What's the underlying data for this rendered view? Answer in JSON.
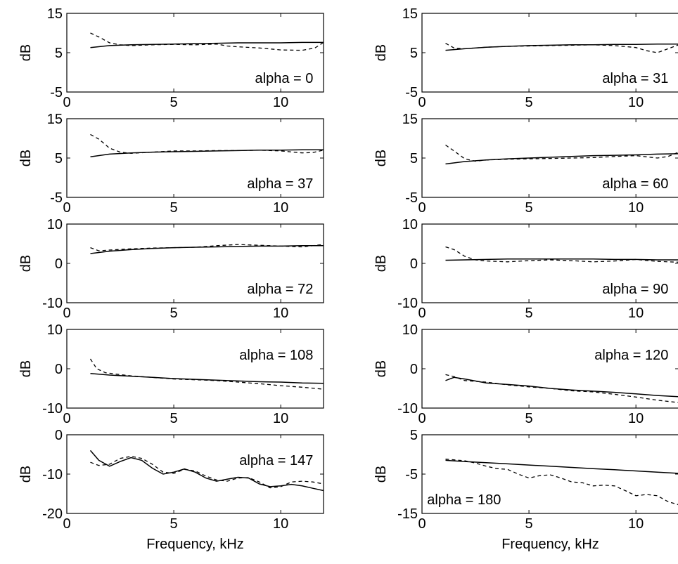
{
  "chart_data": [
    {
      "type": "line",
      "annotation": "alpha = 0",
      "ylabel": "dB",
      "xlabel": "",
      "xlim": [
        0,
        12
      ],
      "ylim": [
        -5,
        15
      ],
      "xticks": [
        0,
        5,
        10
      ],
      "yticks": [
        -5,
        5,
        15
      ],
      "series": [
        {
          "style": "solid",
          "x": [
            1.1,
            2,
            3,
            4,
            5,
            6,
            7,
            8,
            9,
            10,
            11,
            12
          ],
          "y": [
            6.3,
            6.8,
            7.0,
            7.1,
            7.2,
            7.3,
            7.4,
            7.5,
            7.5,
            7.5,
            7.6,
            7.6
          ]
        },
        {
          "style": "dashed",
          "x": [
            1.1,
            1.5,
            2,
            2.5,
            3,
            4,
            5,
            6,
            7,
            7.5,
            8,
            9,
            10,
            11,
            11.6,
            12
          ],
          "y": [
            10.0,
            9.0,
            7.5,
            7.0,
            6.8,
            7.0,
            7.1,
            7.0,
            7.2,
            6.7,
            6.5,
            6.2,
            5.7,
            5.6,
            6.2,
            7.6
          ]
        }
      ]
    },
    {
      "type": "line",
      "annotation": "alpha = 31",
      "ylabel": "dB",
      "xlabel": "",
      "xlim": [
        0,
        12
      ],
      "ylim": [
        -5,
        15
      ],
      "xticks": [
        0,
        5,
        10
      ],
      "yticks": [
        -5,
        5,
        15
      ],
      "series": [
        {
          "style": "solid",
          "x": [
            1.1,
            2,
            3,
            4,
            5,
            6,
            7,
            8,
            9,
            10,
            11,
            12
          ],
          "y": [
            5.6,
            6.0,
            6.4,
            6.6,
            6.8,
            6.9,
            7.0,
            7.0,
            7.1,
            7.1,
            7.2,
            7.2
          ]
        },
        {
          "style": "dashed",
          "x": [
            1.1,
            1.5,
            2,
            2.5,
            3,
            4,
            5,
            6,
            7,
            8,
            9,
            10,
            10.5,
            11,
            11.5,
            12
          ],
          "y": [
            7.4,
            6.2,
            6.0,
            6.2,
            6.4,
            6.6,
            6.7,
            6.8,
            6.9,
            7.0,
            6.8,
            6.3,
            5.5,
            5.0,
            6.0,
            7.0
          ]
        }
      ]
    },
    {
      "type": "line",
      "annotation": "alpha = 37",
      "ylabel": "dB",
      "xlabel": "",
      "xlim": [
        0,
        12
      ],
      "ylim": [
        -5,
        15
      ],
      "xticks": [
        0,
        5,
        10
      ],
      "yticks": [
        -5,
        5,
        15
      ],
      "series": [
        {
          "style": "solid",
          "x": [
            1.1,
            2,
            3,
            4,
            5,
            6,
            7,
            8,
            9,
            10,
            11,
            12
          ],
          "y": [
            5.3,
            6.0,
            6.3,
            6.5,
            6.6,
            6.7,
            6.8,
            6.9,
            7.0,
            7.0,
            7.1,
            7.1
          ]
        },
        {
          "style": "dashed",
          "x": [
            1.1,
            1.5,
            2,
            2.5,
            3,
            4,
            5,
            6,
            7,
            8,
            9,
            10,
            11,
            11.5,
            12
          ],
          "y": [
            11.0,
            9.8,
            7.5,
            6.5,
            6.2,
            6.5,
            6.8,
            6.8,
            6.9,
            6.9,
            7.0,
            6.8,
            6.3,
            6.4,
            7.0
          ]
        }
      ]
    },
    {
      "type": "line",
      "annotation": "alpha = 60",
      "ylabel": "dB",
      "xlabel": "",
      "xlim": [
        0,
        12
      ],
      "ylim": [
        -5,
        15
      ],
      "xticks": [
        0,
        5,
        10
      ],
      "yticks": [
        -5,
        5,
        15
      ],
      "series": [
        {
          "style": "solid",
          "x": [
            1.1,
            2,
            3,
            4,
            5,
            6,
            7,
            8,
            9,
            10,
            11,
            12
          ],
          "y": [
            3.5,
            4.1,
            4.5,
            4.8,
            5.0,
            5.2,
            5.4,
            5.6,
            5.7,
            5.8,
            6.0,
            6.1
          ]
        },
        {
          "style": "dashed",
          "x": [
            1.1,
            1.5,
            2,
            2.5,
            3,
            4,
            5,
            6,
            7,
            8,
            9,
            10,
            11,
            11.5,
            12
          ],
          "y": [
            8.3,
            6.8,
            4.8,
            4.2,
            4.5,
            4.7,
            4.8,
            4.9,
            5.0,
            5.1,
            5.4,
            5.6,
            5.0,
            5.4,
            6.5
          ]
        }
      ]
    },
    {
      "type": "line",
      "annotation": "alpha = 72",
      "ylabel": "dB",
      "xlabel": "",
      "xlim": [
        0,
        12
      ],
      "ylim": [
        -10,
        10
      ],
      "xticks": [
        0,
        5,
        10
      ],
      "yticks": [
        -10,
        0,
        10
      ],
      "series": [
        {
          "style": "solid",
          "x": [
            1.1,
            2,
            3,
            4,
            5,
            6,
            7,
            8,
            9,
            10,
            11,
            12
          ],
          "y": [
            2.5,
            3.1,
            3.5,
            3.8,
            4.0,
            4.1,
            4.2,
            4.3,
            4.4,
            4.4,
            4.5,
            4.5
          ]
        },
        {
          "style": "dashed",
          "x": [
            1.1,
            1.5,
            2,
            3,
            4,
            5,
            6,
            7,
            8,
            9,
            10,
            11,
            12
          ],
          "y": [
            4.0,
            3.2,
            3.4,
            3.7,
            3.9,
            4.0,
            4.1,
            4.5,
            4.8,
            4.6,
            4.4,
            4.2,
            4.8
          ]
        }
      ]
    },
    {
      "type": "line",
      "annotation": "alpha = 90",
      "ylabel": "dB",
      "xlabel": "",
      "xlim": [
        0,
        12
      ],
      "ylim": [
        -10,
        10
      ],
      "xticks": [
        0,
        5,
        10
      ],
      "yticks": [
        -10,
        0,
        10
      ],
      "series": [
        {
          "style": "solid",
          "x": [
            1.1,
            2,
            3,
            4,
            5,
            6,
            7,
            8,
            9,
            10,
            11,
            12
          ],
          "y": [
            0.8,
            0.9,
            1.0,
            1.1,
            1.1,
            1.1,
            1.1,
            1.1,
            1.0,
            1.0,
            0.9,
            0.9
          ]
        },
        {
          "style": "dashed",
          "x": [
            1.1,
            1.5,
            2,
            2.5,
            3,
            4,
            5,
            6,
            7,
            8,
            9,
            10,
            11,
            12
          ],
          "y": [
            4.2,
            3.5,
            1.8,
            0.9,
            0.6,
            0.4,
            0.7,
            0.9,
            0.7,
            0.4,
            0.6,
            1.0,
            0.5,
            0.3
          ]
        }
      ]
    },
    {
      "type": "line",
      "annotation": "alpha = 108",
      "ylabel": "dB",
      "xlabel": "",
      "xlim": [
        0,
        12
      ],
      "ylim": [
        -10,
        10
      ],
      "xticks": [
        0,
        5,
        10
      ],
      "yticks": [
        -10,
        0,
        10
      ],
      "series": [
        {
          "style": "solid",
          "x": [
            1.1,
            2,
            3,
            4,
            5,
            6,
            7,
            8,
            9,
            10,
            11,
            12
          ],
          "y": [
            -1.2,
            -1.6,
            -1.9,
            -2.2,
            -2.5,
            -2.7,
            -2.9,
            -3.1,
            -3.3,
            -3.4,
            -3.6,
            -3.7
          ]
        },
        {
          "style": "dashed",
          "x": [
            1.1,
            1.4,
            1.8,
            2.5,
            3,
            4,
            5,
            6,
            7,
            8,
            9,
            10,
            11,
            12
          ],
          "y": [
            2.5,
            0.0,
            -1.0,
            -1.5,
            -1.8,
            -2.2,
            -2.6,
            -2.8,
            -3.0,
            -3.4,
            -3.8,
            -4.3,
            -4.7,
            -5.2
          ]
        }
      ]
    },
    {
      "type": "line",
      "annotation": "alpha = 120",
      "ylabel": "dB",
      "xlabel": "",
      "xlim": [
        0,
        12
      ],
      "ylim": [
        -10,
        10
      ],
      "xticks": [
        0,
        5,
        10
      ],
      "yticks": [
        -10,
        0,
        10
      ],
      "series": [
        {
          "style": "solid",
          "x": [
            1.1,
            1.5,
            2,
            3,
            4,
            5,
            6,
            7,
            8,
            9,
            10,
            11,
            12
          ],
          "y": [
            -3.0,
            -2.2,
            -2.6,
            -3.6,
            -4.0,
            -4.4,
            -5.0,
            -5.4,
            -5.7,
            -6.0,
            -6.4,
            -6.8,
            -7.1
          ]
        },
        {
          "style": "dashed",
          "x": [
            1.1,
            1.5,
            2,
            3,
            4,
            5,
            6,
            7,
            8,
            9,
            10,
            11,
            12
          ],
          "y": [
            -1.5,
            -2.0,
            -3.0,
            -3.4,
            -4.1,
            -4.6,
            -5.0,
            -5.6,
            -5.9,
            -6.5,
            -7.2,
            -8.0,
            -8.6
          ]
        }
      ]
    },
    {
      "type": "line",
      "annotation": "alpha = 147",
      "ylabel": "dB",
      "xlabel": "Frequency, kHz",
      "xlim": [
        0,
        12
      ],
      "ylim": [
        -20,
        0
      ],
      "xticks": [
        0,
        5,
        10
      ],
      "yticks": [
        -20,
        -10,
        0
      ],
      "series": [
        {
          "style": "solid",
          "x": [
            1.1,
            1.5,
            2,
            2.5,
            3,
            3.5,
            4,
            4.5,
            5,
            5.5,
            6,
            6.5,
            7,
            7.5,
            8,
            8.5,
            9,
            9.5,
            10,
            10.5,
            11,
            11.5,
            12
          ],
          "y": [
            -4.0,
            -6.5,
            -8.0,
            -6.8,
            -5.8,
            -6.5,
            -8.5,
            -10.0,
            -9.5,
            -8.7,
            -9.5,
            -11.0,
            -11.8,
            -11.3,
            -10.8,
            -11.0,
            -12.5,
            -13.2,
            -13.0,
            -12.6,
            -13.0,
            -13.6,
            -14.2
          ]
        },
        {
          "style": "dashed",
          "x": [
            1.1,
            1.5,
            2,
            2.5,
            3,
            3.5,
            4,
            4.5,
            5,
            5.5,
            6,
            6.5,
            7,
            7.5,
            8,
            8.5,
            9,
            9.5,
            10,
            10.5,
            11,
            11.5,
            12
          ],
          "y": [
            -7.0,
            -7.8,
            -7.5,
            -6.0,
            -5.5,
            -6.0,
            -7.5,
            -9.5,
            -9.8,
            -8.8,
            -9.2,
            -10.5,
            -11.5,
            -11.8,
            -11.0,
            -10.9,
            -12.0,
            -13.5,
            -13.2,
            -12.0,
            -11.8,
            -12.0,
            -12.5
          ]
        }
      ]
    },
    {
      "type": "line",
      "annotation": "alpha = 180",
      "ylabel": "dB",
      "xlabel": "Frequency, kHz",
      "xlim": [
        0,
        12
      ],
      "ylim": [
        -15,
        5
      ],
      "xticks": [
        0,
        5,
        10
      ],
      "yticks": [
        -15,
        -5,
        5
      ],
      "series": [
        {
          "style": "solid",
          "x": [
            1.1,
            2,
            3,
            4,
            5,
            6,
            7,
            8,
            9,
            10,
            11,
            12
          ],
          "y": [
            -1.5,
            -1.8,
            -2.1,
            -2.4,
            -2.7,
            -3.0,
            -3.3,
            -3.6,
            -3.9,
            -4.2,
            -4.5,
            -4.8
          ]
        },
        {
          "style": "dashed",
          "x": [
            1.1,
            2,
            2.5,
            3,
            3.5,
            4,
            4.5,
            5,
            5.5,
            6,
            6.5,
            7,
            7.5,
            8,
            8.5,
            9,
            9.5,
            10,
            10.5,
            11,
            11.5,
            12
          ],
          "y": [
            -1.2,
            -1.6,
            -2.2,
            -3.0,
            -3.6,
            -3.8,
            -5.0,
            -6.0,
            -5.4,
            -5.2,
            -6.0,
            -7.0,
            -7.2,
            -8.0,
            -7.8,
            -8.0,
            -9.2,
            -10.5,
            -10.2,
            -10.5,
            -12.0,
            -12.8
          ]
        }
      ]
    }
  ]
}
